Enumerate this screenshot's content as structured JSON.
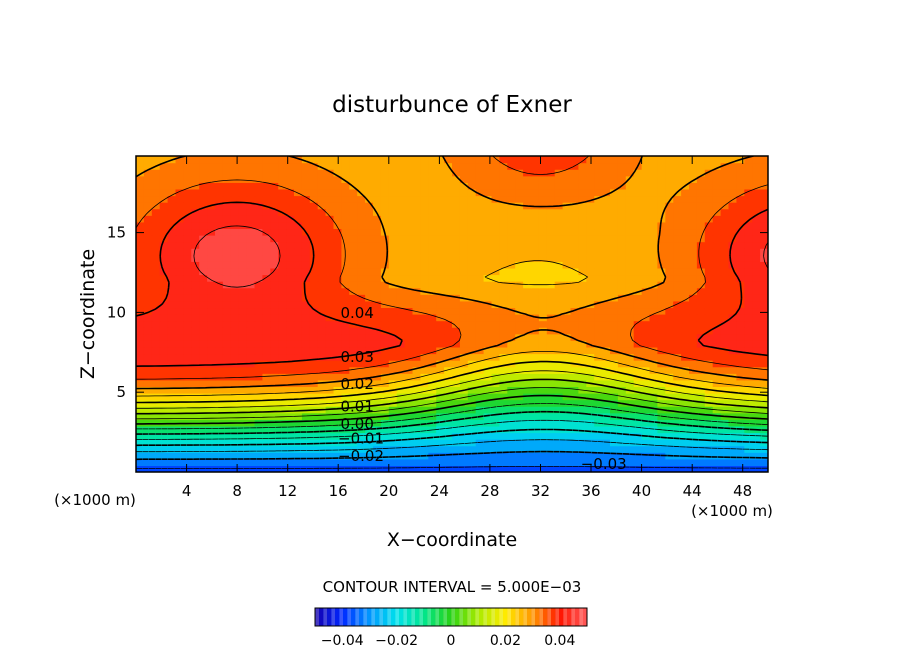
{
  "chart_data": {
    "type": "contour",
    "title": "disturbunce of Exner",
    "xlabel": "X−coordinate",
    "ylabel": "Z−coordinate",
    "x_unit_left": "(×1000 m)",
    "x_unit_right": "(×1000 m)",
    "xlim": [
      0,
      50
    ],
    "ylim": [
      0,
      19.8
    ],
    "x_ticks": [
      4,
      8,
      12,
      16,
      20,
      24,
      28,
      32,
      36,
      40,
      44,
      48
    ],
    "x_tick_labels": [
      "4",
      "8",
      "12",
      "16",
      "20",
      "24",
      "28",
      "32",
      "36",
      "40",
      "44",
      "48"
    ],
    "y_ticks": [
      5,
      10,
      15
    ],
    "y_tick_labels": [
      "5",
      "10",
      "15"
    ],
    "contour_interval_text": "CONTOUR INTERVAL = 5.000E−03",
    "contour_interval": 0.005,
    "field_range": [
      -0.048,
      0.048
    ],
    "contour_labels": [
      {
        "text": "0.04",
        "x": 17.5,
        "z": 9.95
      },
      {
        "text": "0.03",
        "x": 17.5,
        "z": 7.2
      },
      {
        "text": "0.02",
        "x": 17.5,
        "z": 5.5
      },
      {
        "text": "0.01",
        "x": 17.5,
        "z": 4.1
      },
      {
        "text": "0.00",
        "x": 17.5,
        "z": 3.0
      },
      {
        "text": "−0.01",
        "x": 17.8,
        "z": 2.1
      },
      {
        "text": "−0.02",
        "x": 17.8,
        "z": 1.0
      },
      {
        "text": "−0.03",
        "x": 37.0,
        "z": 0.5
      }
    ],
    "colorbar": {
      "min": -0.05,
      "max": 0.05,
      "tick_values": [
        -0.04,
        -0.02,
        0,
        0.02,
        0.04
      ],
      "tick_labels": [
        "−0.04",
        "−0.02",
        "0",
        "0.02",
        "0.04"
      ]
    }
  }
}
